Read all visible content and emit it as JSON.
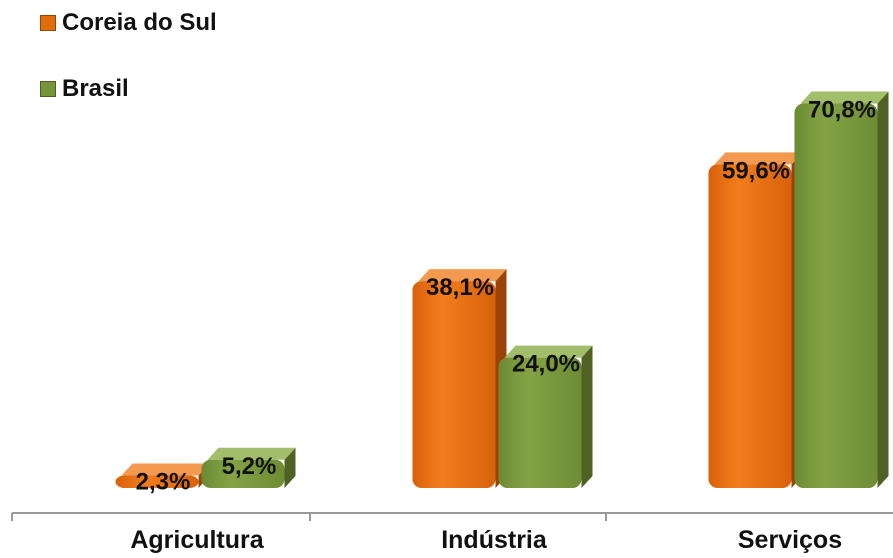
{
  "chart_data": {
    "type": "bar",
    "categories": [
      "Agricultura",
      "Indústria",
      "Serviços"
    ],
    "series": [
      {
        "name": "Coreia do Sul",
        "values": [
          2.3,
          38.1,
          59.6
        ],
        "labels": [
          "2,3%",
          "38,1%",
          "59,6%"
        ],
        "color": "#e36c0a"
      },
      {
        "name": "Brasil",
        "values": [
          5.2,
          24.0,
          70.8
        ],
        "labels": [
          "5,2%",
          "24,0%",
          "70,8%"
        ],
        "color": "#77933c"
      }
    ],
    "title": "",
    "xlabel": "",
    "ylabel": "",
    "ylim": [
      0,
      75
    ],
    "grid": false,
    "legend": "top-left"
  }
}
